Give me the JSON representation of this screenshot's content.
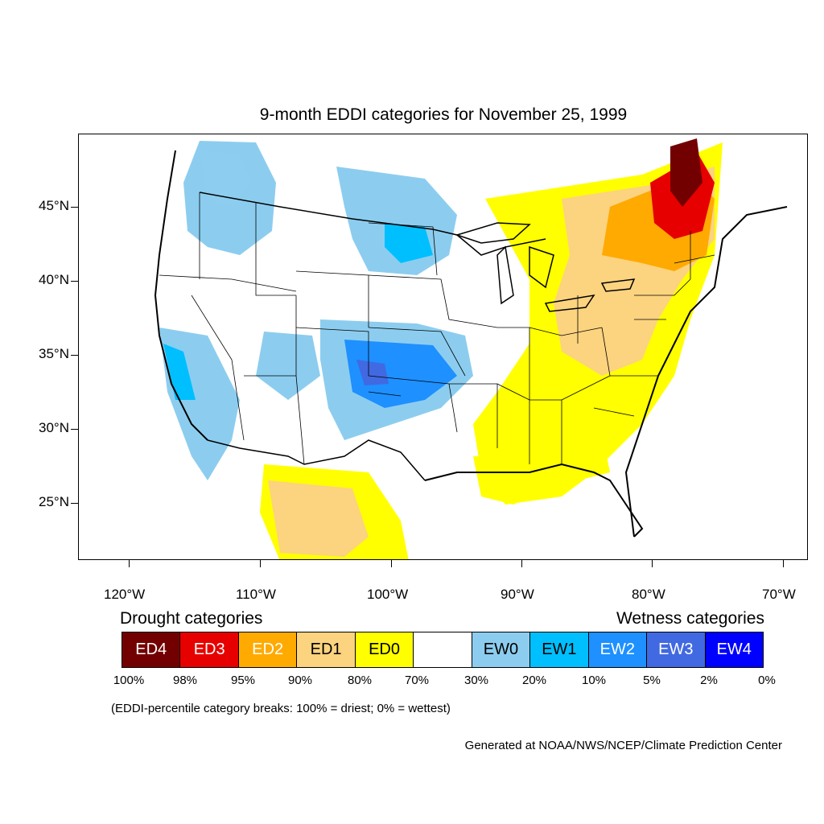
{
  "title": "9-month EDDI categories for November 25, 1999",
  "lat_labels": [
    "45°N",
    "40°N",
    "35°N",
    "30°N",
    "25°N"
  ],
  "lon_labels": [
    "120°W",
    "110°W",
    "100°W",
    "90°W",
    "80°W",
    "70°W"
  ],
  "legend": {
    "drought_heading": "Drought categories",
    "wetness_heading": "Wetness categories",
    "categories": [
      {
        "label": "ED4",
        "color": "#730000",
        "text_color": "#ffffff"
      },
      {
        "label": "ED3",
        "color": "#e60000",
        "text_color": "#ffffff"
      },
      {
        "label": "ED2",
        "color": "#ffaa00",
        "text_color": "#ffffff"
      },
      {
        "label": "ED1",
        "color": "#fcd37f",
        "text_color": "#000000"
      },
      {
        "label": "ED0",
        "color": "#ffff00",
        "text_color": "#000000"
      },
      {
        "label": "",
        "color": "#ffffff",
        "text_color": "#000000"
      },
      {
        "label": "EW0",
        "color": "#8ccdef",
        "text_color": "#000000"
      },
      {
        "label": "EW1",
        "color": "#00bfff",
        "text_color": "#000000"
      },
      {
        "label": "EW2",
        "color": "#1e90ff",
        "text_color": "#ffffff"
      },
      {
        "label": "EW3",
        "color": "#4169e1",
        "text_color": "#ffffff"
      },
      {
        "label": "EW4",
        "color": "#0000ff",
        "text_color": "#ffffff"
      }
    ],
    "breaks": [
      "100%",
      "98%",
      "95%",
      "90%",
      "80%",
      "70%",
      "30%",
      "20%",
      "10%",
      "5%",
      "2%",
      "0%"
    ]
  },
  "note": "(EDDI-percentile category breaks: 100% = driest; 0% = wettest)",
  "credit": "Generated at NOAA/NWS/NCEP/Climate Prediction Center"
}
